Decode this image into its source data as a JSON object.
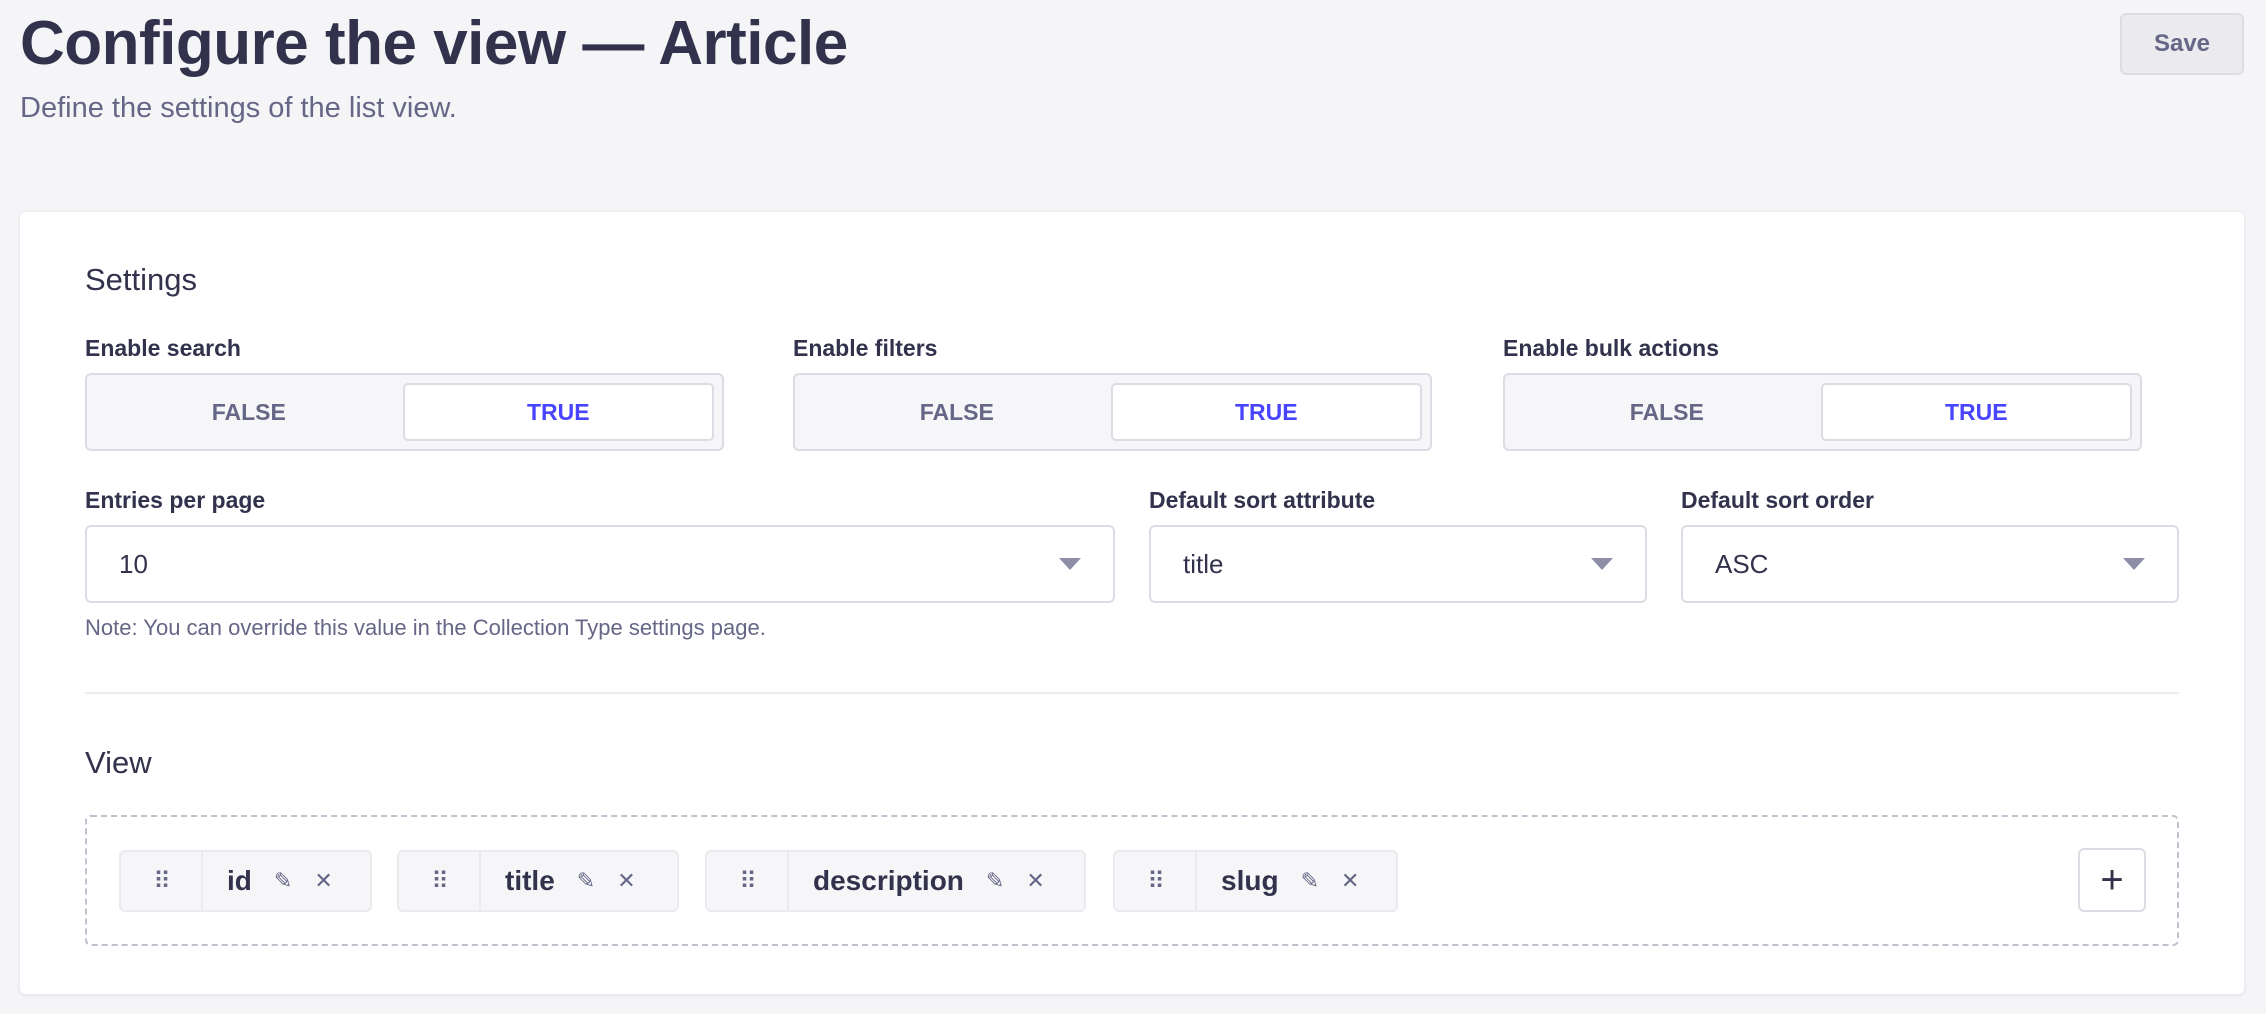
{
  "header": {
    "title": "Configure the view — Article",
    "subtitle": "Define the settings of the list view.",
    "save_label": "Save"
  },
  "settings": {
    "heading": "Settings",
    "toggles": [
      {
        "label": "Enable search",
        "false_label": "FALSE",
        "true_label": "TRUE",
        "value": true
      },
      {
        "label": "Enable filters",
        "false_label": "FALSE",
        "true_label": "TRUE",
        "value": true
      },
      {
        "label": "Enable bulk actions",
        "false_label": "FALSE",
        "true_label": "TRUE",
        "value": true
      }
    ],
    "selects": [
      {
        "label": "Entries per page",
        "value": "10"
      },
      {
        "label": "Default sort attribute",
        "value": "title"
      },
      {
        "label": "Default sort order",
        "value": "ASC"
      }
    ],
    "note": "Note: You can override this value in the Collection Type settings page."
  },
  "view": {
    "heading": "View",
    "fields": [
      {
        "name": "id"
      },
      {
        "name": "title"
      },
      {
        "name": "description"
      },
      {
        "name": "slug"
      }
    ],
    "icons": {
      "drag": "drag-handle-icon",
      "edit": "pencil-icon",
      "remove": "close-icon",
      "add": "plus-icon"
    }
  },
  "colors": {
    "accent": "#4945ff",
    "text": "#32324d",
    "muted": "#666687",
    "background": "#f5f5f8"
  }
}
